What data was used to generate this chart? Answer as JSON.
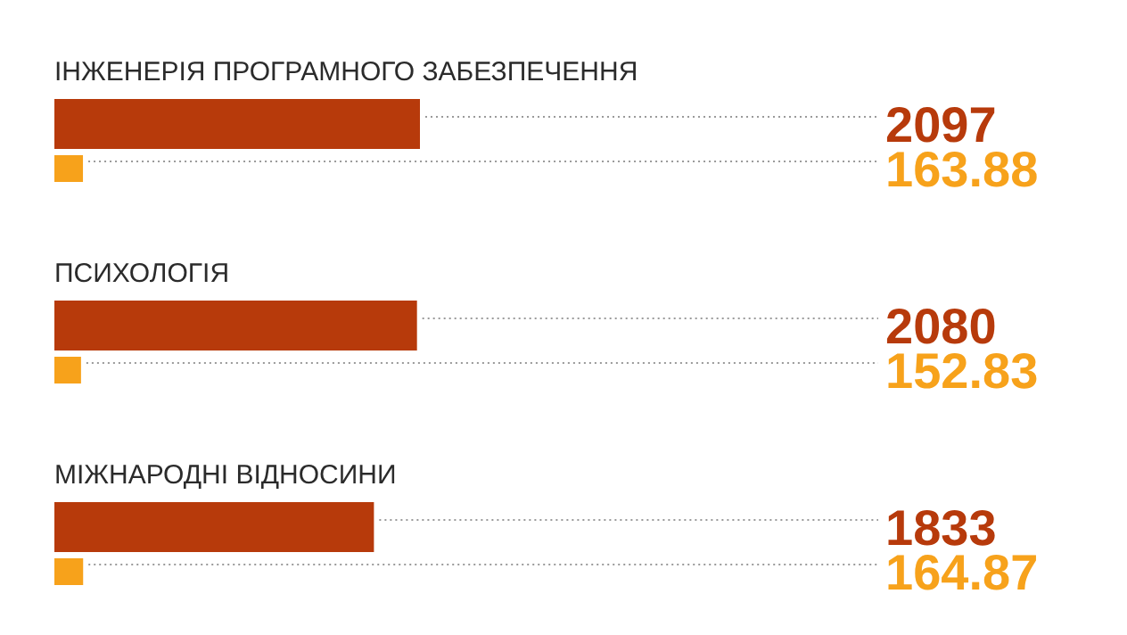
{
  "chart_data": {
    "type": "bar",
    "orientation": "horizontal",
    "categories": [
      "ІНЖЕНЕРІЯ ПРОГРАМНОГО ЗАБЕЗПЕЧЕННЯ",
      "ПСИХОЛОГІЯ",
      "МІЖНАРОДНІ ВІДНОСИНИ"
    ],
    "series": [
      {
        "color": "#b73a0b",
        "values": [
          2097,
          2080,
          1833
        ]
      },
      {
        "color": "#f7a21b",
        "values": [
          163.88,
          152.83,
          164.87
        ]
      }
    ],
    "data_labels": true,
    "grid": false
  }
}
